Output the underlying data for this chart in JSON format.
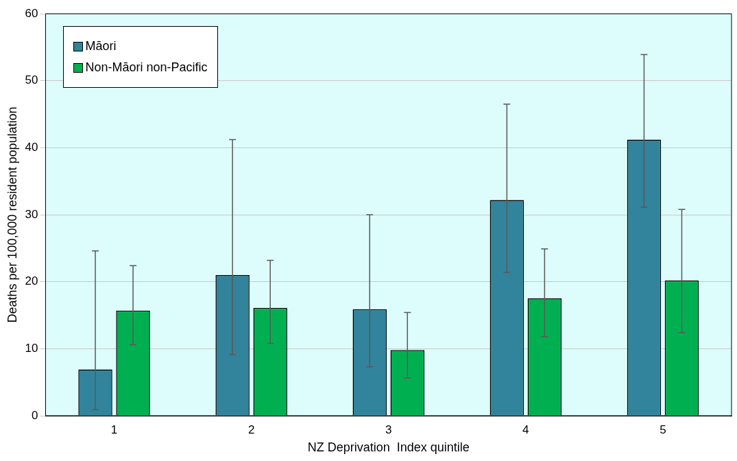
{
  "chart_data": {
    "type": "bar",
    "xlabel": "NZ Deprivation  Index quintile",
    "ylabel": "Deaths per 100,000 resident population",
    "categories": [
      "1",
      "2",
      "3",
      "4",
      "5"
    ],
    "series": [
      {
        "name": "Māori",
        "color": "#31849b",
        "values": [
          6.9,
          21.0,
          15.9,
          32.2,
          41.2
        ],
        "errors": [
          [
            0.9,
            24.6
          ],
          [
            9.1,
            41.2
          ],
          [
            7.3,
            30.0
          ],
          [
            21.4,
            46.5
          ],
          [
            31.1,
            53.9
          ]
        ]
      },
      {
        "name": "Non-Māori non-Pacific",
        "color": "#00b050",
        "values": [
          15.7,
          16.1,
          9.8,
          17.5,
          20.2
        ],
        "errors": [
          [
            10.6,
            22.4
          ],
          [
            10.8,
            23.2
          ],
          [
            5.6,
            15.4
          ],
          [
            11.8,
            24.9
          ],
          [
            12.4,
            30.8
          ]
        ]
      }
    ],
    "ylim": [
      0,
      60
    ],
    "yticks": [
      0,
      10,
      20,
      30,
      40,
      50,
      60
    ],
    "grid": "y",
    "legend": "top left"
  }
}
